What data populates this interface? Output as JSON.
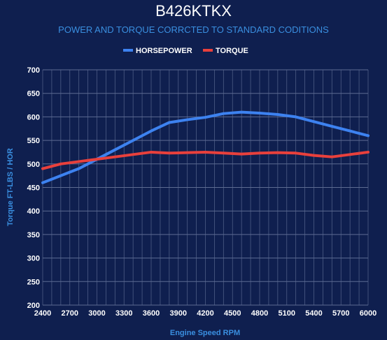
{
  "chart_data": {
    "type": "line",
    "title": "B426KTKX",
    "subtitle": "POWER AND TORQUE CORRCTED TO STANDARD CODITIONS",
    "xlabel": "Engine Speed RPM",
    "ylabel": "Torque FT-LBS / HOR",
    "x": [
      2400,
      2600,
      2800,
      3000,
      3200,
      3400,
      3600,
      3800,
      4000,
      4200,
      4400,
      4600,
      4800,
      5000,
      5200,
      5400,
      5600,
      5800,
      6000
    ],
    "xticks": [
      "2400",
      "2700",
      "3000",
      "3300",
      "3600",
      "3900",
      "4200",
      "4500",
      "4800",
      "5100",
      "5400",
      "5700",
      "6000"
    ],
    "yticks": [
      "200",
      "250",
      "300",
      "350",
      "400",
      "450",
      "500",
      "550",
      "600",
      "650",
      "700"
    ],
    "xlim": [
      2400,
      6000
    ],
    "ylim": [
      200,
      700
    ],
    "grid": true,
    "legend_position": "top-center",
    "series": [
      {
        "name": "HORSEPOWER",
        "color": "#3d82f0",
        "values": [
          460,
          475,
          490,
          510,
          530,
          550,
          570,
          588,
          594,
          599,
          607,
          610,
          608,
          605,
          600,
          590,
          580,
          570,
          560
        ]
      },
      {
        "name": "TORQUE",
        "color": "#e8403c",
        "values": [
          490,
          500,
          505,
          510,
          515,
          520,
          525,
          523,
          524,
          525,
          523,
          521,
          523,
          524,
          523,
          518,
          515,
          520,
          525
        ]
      }
    ]
  },
  "colors": {
    "background": "#0f1f4f",
    "accent": "#3a8fe0",
    "grid": "#5d6b92"
  }
}
